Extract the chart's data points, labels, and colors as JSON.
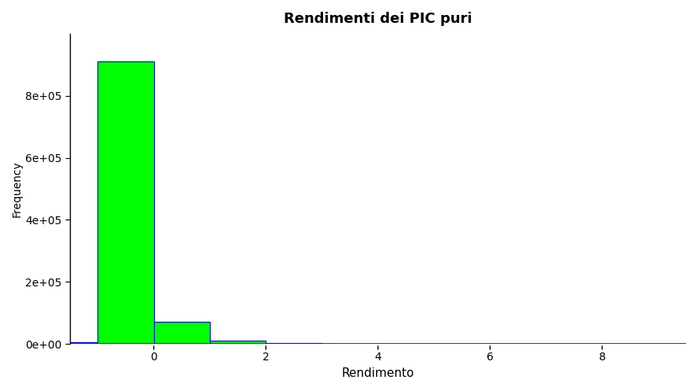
{
  "title": "Rendimenti dei PIC puri",
  "xlabel": "Rendimento",
  "ylabel": "Frequency",
  "bar_color": "#00FF00",
  "bar_edge_color": "#0000FF",
  "line_color": "#0000FF",
  "xlim": [
    -1.5,
    9.5
  ],
  "ylim": [
    0,
    1000000
  ],
  "xticks": [
    0,
    2,
    4,
    6,
    8
  ],
  "yticks": [
    0,
    200000,
    400000,
    600000,
    800000
  ],
  "bin_edges": [
    -2.0,
    -1.0,
    0.0,
    1.0,
    2.0,
    3.0,
    4.0,
    5.0,
    6.0,
    7.0,
    8.0,
    9.0
  ],
  "frequencies": [
    5000,
    910000,
    72000,
    10000,
    2000,
    500,
    200,
    100,
    50,
    20,
    10,
    5
  ],
  "title_fontsize": 13,
  "title_fontweight": "bold",
  "axis_linewidth": 1.0
}
